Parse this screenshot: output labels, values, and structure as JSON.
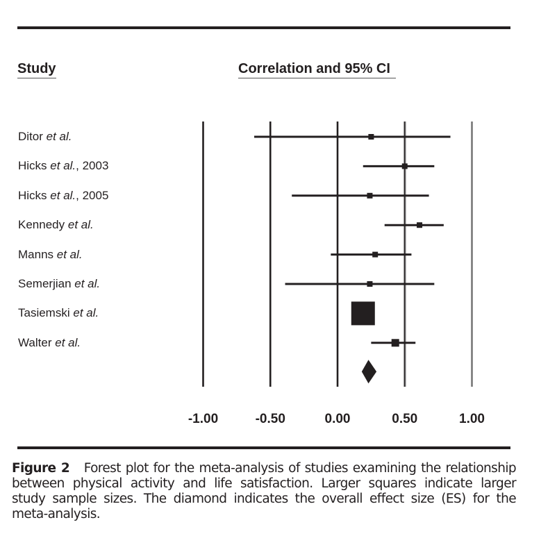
{
  "headers": {
    "study": "Study",
    "ci": "Correlation and 95% CI"
  },
  "studies": [
    {
      "name": "Ditor",
      "suffix": "et al.",
      "year": ""
    },
    {
      "name": "Hicks",
      "suffix": "et al.",
      "year": ", 2003"
    },
    {
      "name": "Hicks",
      "suffix": "et al.",
      "year": ", 2005"
    },
    {
      "name": "Kennedy",
      "suffix": "et al.",
      "year": ""
    },
    {
      "name": "Manns",
      "suffix": "et al.",
      "year": ""
    },
    {
      "name": "Semerjian",
      "suffix": "et al.",
      "year": ""
    },
    {
      "name": "Tasiemski",
      "suffix": "et al.",
      "year": ""
    },
    {
      "name": "Walter",
      "suffix": "et al.",
      "year": ""
    }
  ],
  "caption": {
    "label": "Figure 2",
    "text": "Forest plot for the meta-analysis of studies examining the relationship between physical activity and life satisfaction. Larger squares indicate larger study sample sizes. The diamond indicates the overall effect size (ES) for the meta-analysis."
  },
  "chart_data": {
    "type": "forest",
    "title": "Correlation and 95% CI",
    "xlabel": "",
    "ylabel": "Study",
    "xlim": [
      -1.0,
      1.0
    ],
    "x_ticks": [
      -1.0,
      -0.5,
      0.0,
      0.5,
      1.0
    ],
    "x_tick_labels": [
      "-1.00",
      "-0.50",
      "0.00",
      "0.50",
      "1.00"
    ],
    "grid": "vertical lines at each tick",
    "line_colors": {
      "-1.00": "#231f20",
      "-0.50": "#231f20",
      "0.00": "#231f20",
      "0.50": "#555555",
      "1.00": "#777777"
    },
    "studies": [
      {
        "label": "Ditor et al.",
        "estimate": 0.25,
        "ci_low": -0.62,
        "ci_high": 0.84,
        "weight": "small"
      },
      {
        "label": "Hicks et al., 2003",
        "estimate": 0.5,
        "ci_low": 0.19,
        "ci_high": 0.72,
        "weight": "small"
      },
      {
        "label": "Hicks et al., 2005",
        "estimate": 0.24,
        "ci_low": -0.34,
        "ci_high": 0.68,
        "weight": "small"
      },
      {
        "label": "Kennedy et al.",
        "estimate": 0.61,
        "ci_low": 0.35,
        "ci_high": 0.79,
        "weight": "small"
      },
      {
        "label": "Manns et al.",
        "estimate": 0.28,
        "ci_low": -0.05,
        "ci_high": 0.55,
        "weight": "small"
      },
      {
        "label": "Semerjian et al.",
        "estimate": 0.24,
        "ci_low": -0.39,
        "ci_high": 0.72,
        "weight": "small"
      },
      {
        "label": "Tasiemski et al.",
        "estimate": 0.19,
        "ci_low": 0.19,
        "ci_high": 0.19,
        "weight": "large"
      },
      {
        "label": "Walter et al.",
        "estimate": 0.43,
        "ci_low": 0.25,
        "ci_high": 0.58,
        "weight": "medium"
      }
    ],
    "overall": {
      "label": "Overall ES",
      "estimate": 0.23,
      "ci_low": 0.18,
      "ci_high": 0.29
    },
    "colors": {
      "ink": "#231f20"
    }
  }
}
